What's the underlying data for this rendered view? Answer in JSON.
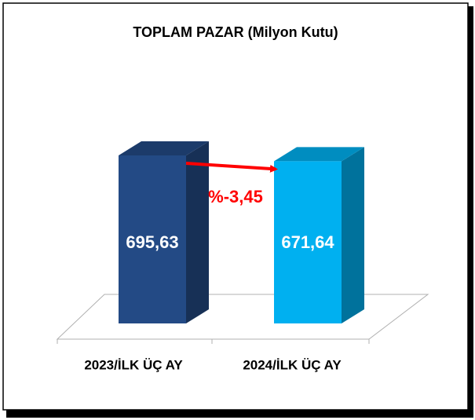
{
  "chart_data": {
    "type": "bar3d",
    "title": "TOPLAM PAZAR (Milyon Kutu)",
    "categories": [
      "2023/İLK ÜÇ AY",
      "2024/İLK ÜÇ AY"
    ],
    "values": [
      695.63,
      671.64
    ],
    "value_labels": [
      "695,63",
      "671,64"
    ],
    "colors": [
      "#234a85",
      "#00b0f0"
    ],
    "annotation": "%-3,45",
    "annotation_color": "#ff0000"
  }
}
